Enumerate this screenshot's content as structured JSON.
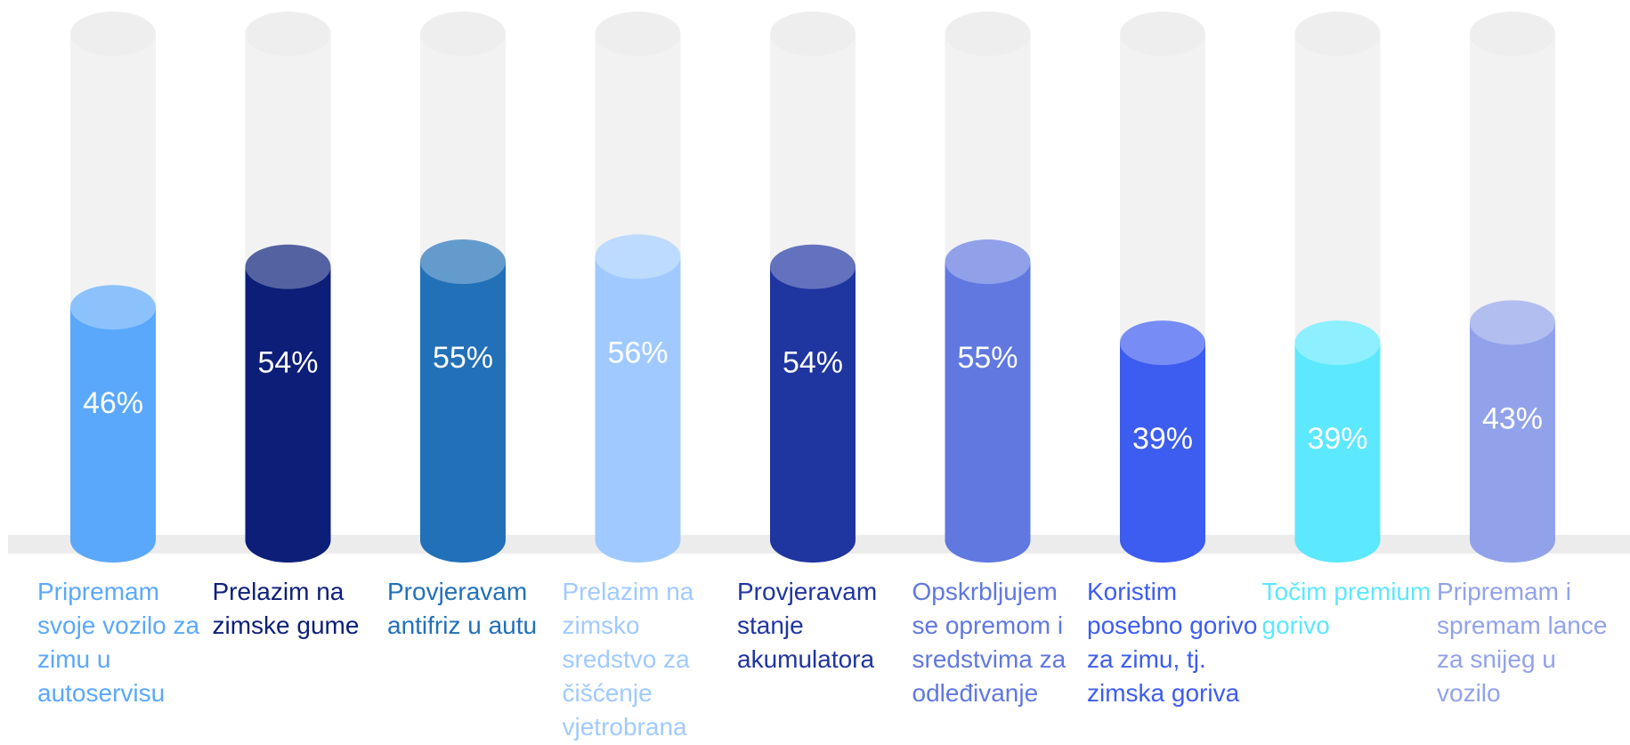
{
  "chart_data": {
    "type": "cylinder-bar",
    "categories": [
      "Pripremam svoje vozilo za zimu u autoservisu",
      "Prelazim na zimske gume",
      "Provjeravam antifriz u autu",
      "Prelazim na zimsko sredstvo za čišćenje vjetrobrana",
      "Provjeravam stanje akumulatora",
      "Opskrbljujem se opremom i sredstvima za odleđivanje",
      "Koristim posebno gorivo za zimu, tj. zimska goriva",
      "Točim premium gorivo",
      "Pripremam i spremam lance za snijeg u vozilo"
    ],
    "values": [
      46,
      54,
      55,
      56,
      54,
      55,
      39,
      39,
      43
    ],
    "value_labels": [
      "46%",
      "54%",
      "55%",
      "56%",
      "54%",
      "55%",
      "39%",
      "39%",
      "43%"
    ],
    "colors": [
      "#5aa8fb",
      "#0c1e78",
      "#2270b8",
      "#a0caff",
      "#1f35a0",
      "#6078e0",
      "#3d5cf0",
      "#5ce8ff",
      "#92a2ea"
    ],
    "ylim": [
      0,
      100
    ]
  }
}
